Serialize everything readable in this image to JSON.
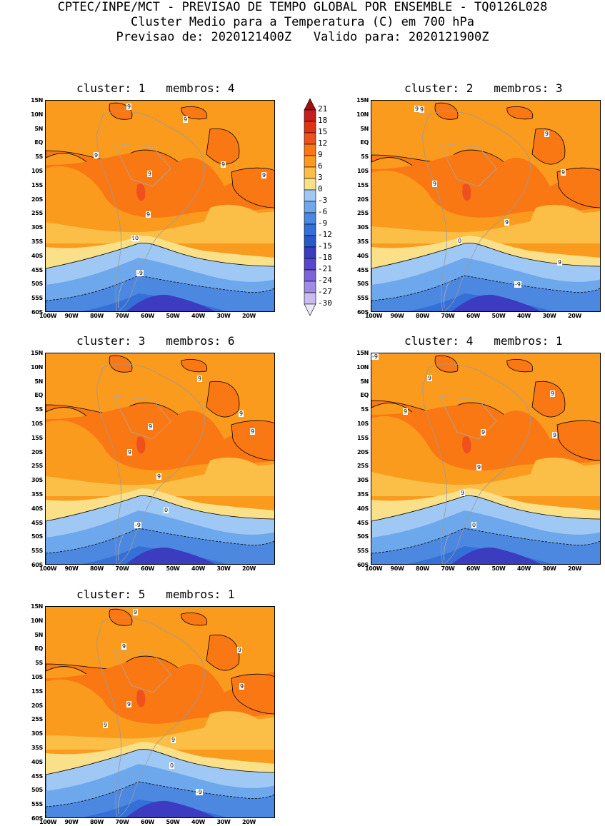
{
  "header": {
    "line1": "CPTEC/INPE/MCT - PREVISAO DE TEMPO GLOBAL POR ENSEMBLE - TQ0126L028",
    "line2": "Cluster Medio para a Temperatura (C) em 700 hPa",
    "line3": "Previsao de: 2020121400Z   Valido para: 2020121900Z"
  },
  "lat_labels": [
    "15N",
    "10N",
    "5N",
    "EQ",
    "5S",
    "10S",
    "15S",
    "20S",
    "25S",
    "30S",
    "35S",
    "40S",
    "45S",
    "50S",
    "55S",
    "60S"
  ],
  "lon_labels": [
    "100W",
    "90W",
    "80W",
    "70W",
    "60W",
    "50W",
    "40W",
    "30W",
    "20W"
  ],
  "colorbar": {
    "levels": [
      "21",
      "18",
      "15",
      "12",
      "9",
      "6",
      "3",
      "0",
      "-3",
      "-6",
      "-9",
      "-12",
      "-15",
      "-18",
      "-21",
      "-24",
      "-27",
      "-30"
    ],
    "colors": [
      "#a01010",
      "#c81e1e",
      "#e03214",
      "#f0501e",
      "#fa7814",
      "#fa9b1e",
      "#fbbe46",
      "#fbe08a",
      "#9fc8f5",
      "#6ea8ec",
      "#4c88e0",
      "#3470d8",
      "#2a58c8",
      "#3c3cc0",
      "#5a46c8",
      "#7a64d8",
      "#a08ce4",
      "#c8bcf0",
      "#ece8fa"
    ]
  },
  "panels": [
    {
      "title": "cluster: 1   membros: 4",
      "labels": [
        "9",
        "9",
        "9",
        "9",
        "9",
        "9",
        "9",
        "9",
        "0",
        "-9"
      ]
    },
    {
      "title": "cluster: 2   membros: 3",
      "labels": [
        "9",
        "9",
        "9",
        "9",
        "9",
        "9",
        "9",
        "0",
        "-9"
      ]
    },
    {
      "title": "cluster: 3   membros: 6",
      "labels": [
        "9",
        "9",
        "9",
        "9",
        "9",
        "9",
        "0",
        "-9"
      ]
    },
    {
      "title": "cluster: 4   membros: 1",
      "labels": [
        "9",
        "9",
        "9",
        "9",
        "9",
        "9",
        "9",
        "0",
        "-9"
      ]
    },
    {
      "title": "cluster: 5   membros: 1",
      "labels": [
        "9",
        "9",
        "9",
        "9",
        "9",
        "9",
        "9",
        "0",
        "-9"
      ]
    }
  ]
}
